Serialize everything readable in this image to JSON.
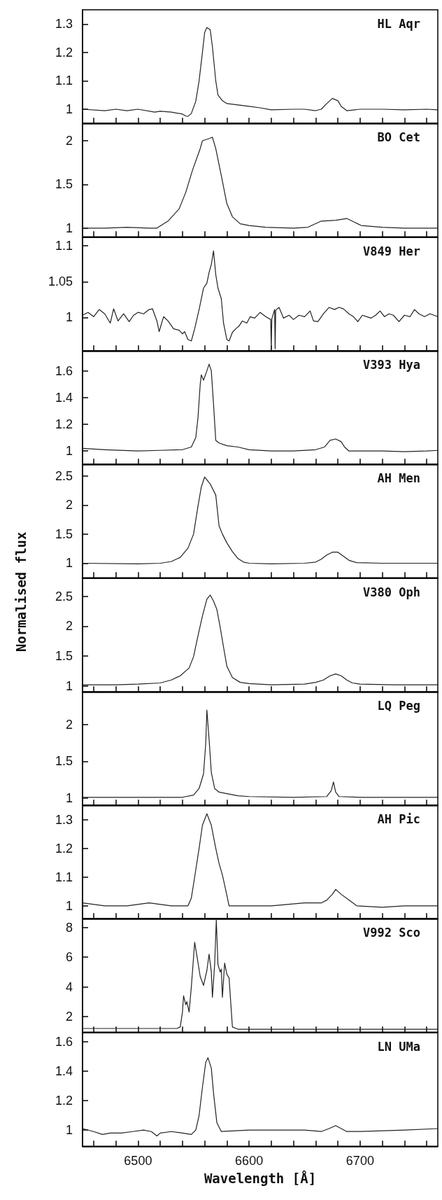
{
  "chart_data": [
    {
      "type": "line",
      "title": "HL Aqr",
      "xlim": [
        6450,
        6770
      ],
      "ylim": [
        0.95,
        1.35
      ],
      "yticks": [
        1,
        1.1,
        1.2,
        1.3
      ],
      "tick_labels": "y",
      "xticks": [
        {
          "value": 6460,
          "label": null
        },
        {
          "value": 6480,
          "label": null
        },
        6500,
        {
          "value": 6520,
          "label": null
        },
        {
          "value": 6540,
          "label": null
        },
        {
          "value": 6560,
          "label": null
        },
        {
          "value": 6580,
          "label": null
        },
        6600,
        {
          "value": 6620,
          "label": null
        },
        {
          "value": 6640,
          "label": null
        },
        {
          "value": 6660,
          "label": null
        },
        {
          "value": 6680,
          "label": null
        },
        6700,
        {
          "value": 6720,
          "label": null
        },
        {
          "value": 6740,
          "label": null
        },
        {
          "value": 6760,
          "label": null
        }
      ],
      "series": [
        {
          "color": "#222222",
          "x": [
            6450,
            6470,
            6480,
            6490,
            6500,
            6515,
            6520,
            6530,
            6540,
            6543,
            6545,
            6548,
            6552,
            6555,
            6558,
            6560,
            6562,
            6565,
            6567,
            6570,
            6572,
            6576,
            6580,
            6590,
            6600,
            6610,
            6620,
            6640,
            6650,
            6660,
            6665,
            6670,
            6675,
            6680,
            6683,
            6688,
            6700,
            6720,
            6740,
            6760,
            6770
          ],
          "values": [
            1.0,
            0.995,
            1.0,
            0.995,
            1.0,
            0.99,
            0.993,
            0.99,
            0.983,
            0.976,
            0.975,
            0.985,
            1.028,
            1.1,
            1.2,
            1.27,
            1.288,
            1.28,
            1.22,
            1.1,
            1.05,
            1.03,
            1.02,
            1.015,
            1.01,
            1.005,
            0.998,
            1.0,
            1.0,
            0.995,
            1.0,
            1.02,
            1.038,
            1.03,
            1.01,
            0.995,
            1.0,
            1.0,
            0.998,
            1.0,
            0.998
          ]
        }
      ]
    },
    {
      "type": "line",
      "title": "BO Cet",
      "xlim": [
        6450,
        6770
      ],
      "ylim": [
        0.9,
        2.2
      ],
      "yticks": [
        1,
        1.5,
        2
      ],
      "tick_labels": "y",
      "xticks": [
        {
          "value": 6460,
          "label": null
        },
        {
          "value": 6480,
          "label": null
        },
        6500,
        {
          "value": 6520,
          "label": null
        },
        {
          "value": 6540,
          "label": null
        },
        {
          "value": 6560,
          "label": null
        },
        {
          "value": 6580,
          "label": null
        },
        6600,
        {
          "value": 6620,
          "label": null
        },
        {
          "value": 6640,
          "label": null
        },
        {
          "value": 6660,
          "label": null
        },
        {
          "value": 6680,
          "label": null
        },
        6700,
        {
          "value": 6720,
          "label": null
        },
        {
          "value": 6740,
          "label": null
        },
        {
          "value": 6760,
          "label": null
        }
      ],
      "series": [
        {
          "color": "#222222",
          "x": [
            6450,
            6470,
            6490,
            6510,
            6517,
            6527,
            6537,
            6543,
            6549,
            6556,
            6558,
            6563,
            6567,
            6570,
            6575,
            6580,
            6585,
            6592,
            6600,
            6615,
            6640,
            6653,
            6665,
            6678,
            6688,
            6701,
            6720,
            6740,
            6770
          ],
          "values": [
            1.0,
            1.0,
            1.01,
            1.0,
            1.0,
            1.08,
            1.22,
            1.41,
            1.66,
            1.91,
            2.0,
            2.02,
            2.04,
            1.91,
            1.6,
            1.28,
            1.13,
            1.05,
            1.03,
            1.01,
            1.0,
            1.01,
            1.08,
            1.09,
            1.11,
            1.03,
            1.01,
            1.0,
            1.0
          ]
        }
      ]
    },
    {
      "type": "line",
      "title": "V849 Her",
      "xlim": [
        6450,
        6770
      ],
      "ylim": [
        0.953,
        1.112
      ],
      "yticks": [
        1,
        1.05,
        1.1
      ],
      "tick_labels": "y",
      "xticks": [
        {
          "value": 6460,
          "label": null
        },
        {
          "value": 6480,
          "label": null
        },
        6500,
        {
          "value": 6520,
          "label": null
        },
        {
          "value": 6540,
          "label": null
        },
        {
          "value": 6560,
          "label": null
        },
        {
          "value": 6580,
          "label": null
        },
        6600,
        {
          "value": 6620,
          "label": null
        },
        {
          "value": 6640,
          "label": null
        },
        {
          "value": 6660,
          "label": null
        },
        {
          "value": 6680,
          "label": null
        },
        6700,
        {
          "value": 6720,
          "label": null
        },
        {
          "value": 6740,
          "label": null
        },
        {
          "value": 6760,
          "label": null
        }
      ],
      "series": [
        {
          "color": "#222222",
          "x": [
            6450,
            6455,
            6460,
            6465,
            6470,
            6475,
            6478,
            6482,
            6487,
            6492,
            6496,
            6500,
            6505,
            6510,
            6513,
            6517,
            6519,
            6523,
            6527,
            6532,
            6537,
            6540,
            6542,
            6545,
            6548,
            6551,
            6555,
            6559,
            6562,
            6564,
            6566,
            6568,
            6570,
            6572,
            6575,
            6577,
            6580,
            6582,
            6585,
            6588,
            6591,
            6594,
            6598,
            6601,
            6605,
            6610,
            6615,
            6619.5,
            6620,
            6620.5,
            6623,
            6623.5,
            6624,
            6627,
            6631,
            6636,
            6640,
            6645,
            6650,
            6655,
            6658,
            6662,
            6667,
            6672,
            6677,
            6681,
            6685,
            6690,
            6694,
            6698,
            6702,
            6706,
            6710,
            6714,
            6718,
            6722,
            6726,
            6730,
            6735,
            6740,
            6745,
            6749,
            6753,
            6758,
            6763,
            6770
          ],
          "values": [
            1.003,
            1.007,
            1.001,
            1.011,
            1.005,
            0.992,
            1.012,
            0.995,
            1.005,
            0.994,
            1.003,
            1.007,
            1.005,
            1.011,
            1.012,
            0.995,
            0.98,
            1.001,
            0.995,
            0.984,
            0.982,
            0.977,
            0.98,
            0.969,
            0.967,
            0.984,
            1.011,
            1.041,
            1.048,
            1.063,
            1.074,
            1.093,
            1.06,
            1.041,
            1.026,
            0.992,
            0.969,
            0.967,
            0.979,
            0.984,
            0.988,
            0.995,
            0.992,
            1.001,
            0.999,
            1.007,
            1.001,
            0.997,
            0.956,
            0.998,
            1.011,
            0.956,
            1.01,
            1.014,
            0.999,
            1.003,
            0.997,
            1.003,
            1.001,
            1.009,
            0.995,
            0.994,
            1.005,
            1.014,
            1.011,
            1.014,
            1.012,
            1.005,
            1.001,
            0.994,
            1.003,
            1.001,
            0.999,
            1.003,
            1.009,
            1.001,
            1.005,
            1.003,
            0.994,
            1.003,
            1.001,
            1.011,
            1.005,
            1.001,
            1.005,
            1.001
          ]
        }
      ]
    },
    {
      "type": "line",
      "title": "V393 Hya",
      "xlim": [
        6450,
        6770
      ],
      "ylim": [
        0.9,
        1.75
      ],
      "yticks": [
        1,
        1.2,
        1.4,
        1.6
      ],
      "tick_labels": "y",
      "xticks": [
        {
          "value": 6460,
          "label": null
        },
        {
          "value": 6480,
          "label": null
        },
        6500,
        {
          "value": 6520,
          "label": null
        },
        {
          "value": 6540,
          "label": null
        },
        {
          "value": 6560,
          "label": null
        },
        {
          "value": 6580,
          "label": null
        },
        6600,
        {
          "value": 6620,
          "label": null
        },
        {
          "value": 6640,
          "label": null
        },
        {
          "value": 6660,
          "label": null
        },
        {
          "value": 6680,
          "label": null
        },
        6700,
        {
          "value": 6720,
          "label": null
        },
        {
          "value": 6740,
          "label": null
        },
        {
          "value": 6760,
          "label": null
        }
      ],
      "series": [
        {
          "color": "#222222",
          "x": [
            6450,
            6470,
            6500,
            6520,
            6540,
            6548,
            6552,
            6554,
            6556,
            6557,
            6559,
            6562,
            6564,
            6566,
            6568,
            6570,
            6573,
            6580,
            6590,
            6600,
            6620,
            6640,
            6660,
            6668,
            6673,
            6678,
            6683,
            6686,
            6690,
            6700,
            6720,
            6740,
            6760,
            6770
          ],
          "values": [
            1.02,
            1.01,
            1.0,
            1.005,
            1.01,
            1.03,
            1.1,
            1.25,
            1.5,
            1.57,
            1.53,
            1.6,
            1.65,
            1.6,
            1.35,
            1.08,
            1.06,
            1.04,
            1.03,
            1.01,
            1.0,
            1.0,
            1.01,
            1.03,
            1.08,
            1.09,
            1.07,
            1.03,
            1.0,
            1.0,
            1.0,
            0.995,
            1.0,
            1.005
          ]
        }
      ]
    },
    {
      "type": "line",
      "title": "AH Men",
      "ylabel": "Normalised flux",
      "xlim": [
        6450,
        6770
      ],
      "ylim": [
        0.75,
        2.7
      ],
      "yticks": [
        1,
        1.5,
        2,
        2.5
      ],
      "tick_labels": "y",
      "xticks": [
        {
          "value": 6460,
          "label": null
        },
        {
          "value": 6480,
          "label": null
        },
        6500,
        {
          "value": 6520,
          "label": null
        },
        {
          "value": 6540,
          "label": null
        },
        {
          "value": 6560,
          "label": null
        },
        {
          "value": 6580,
          "label": null
        },
        6600,
        {
          "value": 6620,
          "label": null
        },
        {
          "value": 6640,
          "label": null
        },
        {
          "value": 6660,
          "label": null
        },
        {
          "value": 6680,
          "label": null
        },
        6700,
        {
          "value": 6720,
          "label": null
        },
        {
          "value": 6740,
          "label": null
        },
        {
          "value": 6760,
          "label": null
        }
      ],
      "series": [
        {
          "color": "#222222",
          "x": [
            6450,
            6500,
            6520,
            6530,
            6538,
            6545,
            6550,
            6554,
            6557,
            6560,
            6565,
            6570,
            6573,
            6576,
            6580,
            6585,
            6590,
            6595,
            6600,
            6620,
            6650,
            6660,
            6665,
            6670,
            6675,
            6680,
            6685,
            6690,
            6697,
            6720,
            6770
          ],
          "values": [
            1.0,
            0.99,
            1.0,
            1.03,
            1.1,
            1.26,
            1.5,
            1.98,
            2.31,
            2.48,
            2.36,
            2.17,
            1.64,
            1.5,
            1.35,
            1.2,
            1.08,
            1.02,
            1.0,
            0.99,
            1.0,
            1.02,
            1.07,
            1.14,
            1.19,
            1.19,
            1.12,
            1.05,
            1.01,
            1.0,
            1.0
          ]
        }
      ]
    },
    {
      "type": "line",
      "title": "V380 Oph",
      "xlim": [
        6450,
        6770
      ],
      "ylim": [
        0.9,
        2.8
      ],
      "yticks": [
        1,
        1.5,
        2,
        2.5
      ],
      "tick_labels": "y",
      "xticks": [
        {
          "value": 6460,
          "label": null
        },
        {
          "value": 6480,
          "label": null
        },
        6500,
        {
          "value": 6520,
          "label": null
        },
        {
          "value": 6540,
          "label": null
        },
        {
          "value": 6560,
          "label": null
        },
        {
          "value": 6580,
          "label": null
        },
        6600,
        {
          "value": 6620,
          "label": null
        },
        {
          "value": 6640,
          "label": null
        },
        {
          "value": 6660,
          "label": null
        },
        {
          "value": 6680,
          "label": null
        },
        6700,
        {
          "value": 6720,
          "label": null
        },
        {
          "value": 6740,
          "label": null
        },
        {
          "value": 6760,
          "label": null
        }
      ],
      "series": [
        {
          "color": "#222222",
          "x": [
            6450,
            6480,
            6500,
            6520,
            6530,
            6538,
            6546,
            6550,
            6554,
            6558,
            6562,
            6565,
            6568,
            6571,
            6574,
            6577,
            6580,
            6585,
            6592,
            6600,
            6620,
            6650,
            6660,
            6667,
            6673,
            6678,
            6683,
            6688,
            6693,
            6700,
            6730,
            6770
          ],
          "values": [
            1.02,
            1.02,
            1.03,
            1.05,
            1.1,
            1.17,
            1.3,
            1.49,
            1.84,
            2.17,
            2.45,
            2.52,
            2.42,
            2.28,
            1.98,
            1.65,
            1.33,
            1.14,
            1.06,
            1.04,
            1.02,
            1.03,
            1.06,
            1.1,
            1.17,
            1.2,
            1.17,
            1.1,
            1.05,
            1.03,
            1.02,
            1.02
          ]
        }
      ]
    },
    {
      "type": "line",
      "title": "LQ Peg",
      "xlim": [
        6450,
        6770
      ],
      "ylim": [
        0.9,
        2.45
      ],
      "yticks": [
        1,
        1.5,
        2
      ],
      "tick_labels": "y",
      "xticks": [
        {
          "value": 6460,
          "label": null
        },
        {
          "value": 6480,
          "label": null
        },
        6500,
        {
          "value": 6520,
          "label": null
        },
        {
          "value": 6540,
          "label": null
        },
        {
          "value": 6560,
          "label": null
        },
        {
          "value": 6580,
          "label": null
        },
        6600,
        {
          "value": 6620,
          "label": null
        },
        {
          "value": 6640,
          "label": null
        },
        {
          "value": 6660,
          "label": null
        },
        {
          "value": 6680,
          "label": null
        },
        6700,
        {
          "value": 6720,
          "label": null
        },
        {
          "value": 6740,
          "label": null
        },
        {
          "value": 6760,
          "label": null
        }
      ],
      "series": [
        {
          "color": "#222222",
          "x": [
            6450,
            6500,
            6540,
            6550,
            6555,
            6559,
            6561,
            6562,
            6564,
            6566,
            6569,
            6573,
            6580,
            6590,
            6600,
            6640,
            6670,
            6674,
            6676,
            6678,
            6681,
            6700,
            6770
          ],
          "values": [
            1.01,
            1.01,
            1.01,
            1.04,
            1.13,
            1.33,
            1.75,
            2.2,
            1.8,
            1.35,
            1.13,
            1.08,
            1.06,
            1.03,
            1.02,
            1.01,
            1.02,
            1.1,
            1.22,
            1.08,
            1.02,
            1.01,
            1.01
          ]
        }
      ]
    },
    {
      "type": "line",
      "title": "AH Pic",
      "xlim": [
        6450,
        6770
      ],
      "ylim": [
        0.955,
        1.35
      ],
      "yticks": [
        1,
        1.1,
        1.2,
        1.3
      ],
      "tick_labels": "y",
      "xticks": [
        {
          "value": 6460,
          "label": null
        },
        {
          "value": 6480,
          "label": null
        },
        6500,
        {
          "value": 6520,
          "label": null
        },
        {
          "value": 6540,
          "label": null
        },
        {
          "value": 6560,
          "label": null
        },
        {
          "value": 6580,
          "label": null
        },
        6600,
        {
          "value": 6620,
          "label": null
        },
        {
          "value": 6640,
          "label": null
        },
        {
          "value": 6660,
          "label": null
        },
        {
          "value": 6680,
          "label": null
        },
        6700,
        {
          "value": 6720,
          "label": null
        },
        {
          "value": 6740,
          "label": null
        },
        {
          "value": 6760,
          "label": null
        }
      ],
      "series": [
        {
          "color": "#222222",
          "x": [
            6450,
            6470,
            6490,
            6510,
            6530,
            6545,
            6548,
            6551,
            6555,
            6558,
            6562,
            6566,
            6570,
            6573,
            6576,
            6580,
            6582,
            6590,
            6620,
            6650,
            6665,
            6670,
            6675,
            6678,
            6683,
            6690,
            6697,
            6720,
            6740,
            6770
          ],
          "values": [
            1.01,
            1.0,
            1.0,
            1.01,
            1.0,
            1.0,
            1.027,
            1.1,
            1.2,
            1.28,
            1.32,
            1.28,
            1.2,
            1.147,
            1.107,
            1.037,
            1.0,
            1.0,
            1.0,
            1.01,
            1.01,
            1.02,
            1.04,
            1.057,
            1.04,
            1.02,
            1.0,
            0.995,
            1.0,
            1.0
          ]
        }
      ]
    },
    {
      "type": "line",
      "title": "V992 Sco",
      "xlim": [
        6450,
        6770
      ],
      "ylim": [
        0.95,
        8.6
      ],
      "yticks": [
        2,
        4,
        6,
        8
      ],
      "tick_labels": "y",
      "xticks": [
        {
          "value": 6460,
          "label": null
        },
        {
          "value": 6480,
          "label": null
        },
        6500,
        {
          "value": 6520,
          "label": null
        },
        {
          "value": 6540,
          "label": null
        },
        {
          "value": 6560,
          "label": null
        },
        {
          "value": 6580,
          "label": null
        },
        6600,
        {
          "value": 6620,
          "label": null
        },
        {
          "value": 6640,
          "label": null
        },
        {
          "value": 6660,
          "label": null
        },
        {
          "value": 6680,
          "label": null
        },
        6700,
        {
          "value": 6720,
          "label": null
        },
        {
          "value": 6740,
          "label": null
        },
        {
          "value": 6760,
          "label": null
        }
      ],
      "series": [
        {
          "color": "#222222",
          "x": [
            6450,
            6500,
            6535,
            6538,
            6540,
            6541,
            6543,
            6544,
            6546,
            6548,
            6551,
            6553,
            6556,
            6559,
            6562,
            6564,
            6566,
            6567,
            6569,
            6570.5,
            6572,
            6574,
            6575,
            6576,
            6578,
            6580,
            6582,
            6585,
            6590,
            6600,
            6650,
            6700,
            6770
          ],
          "values": [
            1.2,
            1.2,
            1.2,
            1.3,
            2.3,
            3.4,
            2.8,
            3.0,
            2.3,
            4.0,
            7.0,
            6.1,
            4.7,
            4.1,
            5.1,
            6.2,
            5.0,
            3.3,
            5.5,
            8.5,
            5.5,
            5.0,
            5.2,
            3.3,
            5.6,
            4.85,
            4.6,
            1.3,
            1.15,
            1.15,
            1.15,
            1.15,
            1.15
          ]
        }
      ]
    },
    {
      "type": "line",
      "title": "LN UMa",
      "xlabel": "Wavelength [Å]",
      "xlim": [
        6450,
        6770
      ],
      "ylim": [
        0.89,
        1.66
      ],
      "yticks": [
        1,
        1.2,
        1.4,
        1.6
      ],
      "xticks": [
        {
          "value": 6460,
          "label": null
        },
        {
          "value": 6480,
          "label": null
        },
        6500,
        {
          "value": 6520,
          "label": null
        },
        {
          "value": 6540,
          "label": null
        },
        {
          "value": 6560,
          "label": null
        },
        {
          "value": 6580,
          "label": null
        },
        6600,
        {
          "value": 6620,
          "label": null
        },
        {
          "value": 6640,
          "label": null
        },
        {
          "value": 6660,
          "label": null
        },
        {
          "value": 6680,
          "label": null
        },
        6700,
        {
          "value": 6720,
          "label": null
        },
        {
          "value": 6740,
          "label": null
        },
        {
          "value": 6760,
          "label": null
        }
      ],
      "series": [
        {
          "color": "#222222",
          "x": [
            6450,
            6460,
            6468,
            6475,
            6485,
            6495,
            6505,
            6512,
            6517,
            6520,
            6530,
            6540,
            6548,
            6552,
            6555,
            6558,
            6561,
            6563,
            6566,
            6568,
            6571,
            6575,
            6600,
            6650,
            6665,
            6672,
            6678,
            6683,
            6688,
            6700,
            6740,
            6770
          ],
          "values": [
            1.01,
            0.99,
            0.97,
            0.98,
            0.98,
            0.99,
            1.0,
            0.99,
            0.96,
            0.98,
            0.99,
            0.98,
            0.97,
            1.0,
            1.1,
            1.29,
            1.46,
            1.49,
            1.42,
            1.25,
            1.05,
            0.99,
            1.0,
            1.0,
            0.99,
            1.01,
            1.03,
            1.01,
            0.99,
            0.99,
            1.0,
            1.01
          ]
        }
      ]
    }
  ]
}
